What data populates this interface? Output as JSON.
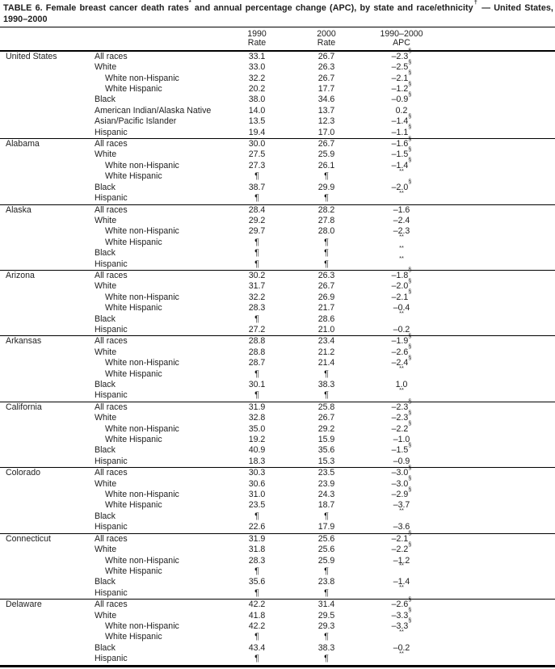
{
  "title": {
    "part1": "TABLE 6. Female breast cancer death rates",
    "sup1": "*",
    "part2": " and annual percentage change (APC), by state and race/ethnicity",
    "sup2": "†",
    "part3": " — United States, 1990–2000"
  },
  "header": {
    "col_1990_line1": "1990",
    "col_1990_line2": "Rate",
    "col_2000_line1": "2000",
    "col_2000_line2": "Rate",
    "col_apc_line1": "1990–2000",
    "col_apc_line2": "APC"
  },
  "sections": [
    {
      "state": "United States",
      "rows": [
        {
          "race": "All races",
          "indent": false,
          "r1990": "33.1",
          "r2000": "26.7",
          "apc": "–2.3",
          "mark": "§"
        },
        {
          "race": "White",
          "indent": false,
          "r1990": "33.0",
          "r2000": "26.3",
          "apc": "–2.5",
          "mark": "§"
        },
        {
          "race": "White non-Hispanic",
          "indent": true,
          "r1990": "32.2",
          "r2000": "26.7",
          "apc": "–2.1",
          "mark": "§"
        },
        {
          "race": "White Hispanic",
          "indent": true,
          "r1990": "20.2",
          "r2000": "17.7",
          "apc": "–1.2",
          "mark": "§"
        },
        {
          "race": "Black",
          "indent": false,
          "r1990": "38.0",
          "r2000": "34.6",
          "apc": "–0.9",
          "mark": "§"
        },
        {
          "race": "American Indian/Alaska Native",
          "indent": false,
          "r1990": "14.0",
          "r2000": "13.7",
          "apc": "0.2",
          "mark": ""
        },
        {
          "race": "Asian/Pacific Islander",
          "indent": false,
          "r1990": "13.5",
          "r2000": "12.3",
          "apc": "–1.4",
          "mark": "§"
        },
        {
          "race": "Hispanic",
          "indent": false,
          "r1990": "19.4",
          "r2000": "17.0",
          "apc": "–1.1",
          "mark": "§"
        }
      ]
    },
    {
      "state": "Alabama",
      "rows": [
        {
          "race": "All races",
          "indent": false,
          "r1990": "30.0",
          "r2000": "26.7",
          "apc": "–1.6",
          "mark": "§"
        },
        {
          "race": "White",
          "indent": false,
          "r1990": "27.5",
          "r2000": "25.9",
          "apc": "–1.5",
          "mark": "§"
        },
        {
          "race": "White non-Hispanic",
          "indent": true,
          "r1990": "27.3",
          "r2000": "26.1",
          "apc": "–1.4",
          "mark": "§"
        },
        {
          "race": "White Hispanic",
          "indent": true,
          "r1990": "¶",
          "r2000": "¶",
          "apc": "",
          "mark": "**"
        },
        {
          "race": "Black",
          "indent": false,
          "r1990": "38.7",
          "r2000": "29.9",
          "apc": "–2.0",
          "mark": "§"
        },
        {
          "race": "Hispanic",
          "indent": false,
          "r1990": "¶",
          "r2000": "¶",
          "apc": "",
          "mark": "**"
        }
      ]
    },
    {
      "state": "Alaska",
      "rows": [
        {
          "race": "All races",
          "indent": false,
          "r1990": "28.4",
          "r2000": "28.2",
          "apc": "–1.6",
          "mark": ""
        },
        {
          "race": "White",
          "indent": false,
          "r1990": "29.2",
          "r2000": "27.8",
          "apc": "–2.4",
          "mark": ""
        },
        {
          "race": "White non-Hispanic",
          "indent": true,
          "r1990": "29.7",
          "r2000": "28.0",
          "apc": "–2.3",
          "mark": ""
        },
        {
          "race": "White Hispanic",
          "indent": true,
          "r1990": "¶",
          "r2000": "¶",
          "apc": "",
          "mark": "**"
        },
        {
          "race": "Black",
          "indent": false,
          "r1990": "¶",
          "r2000": "¶",
          "apc": "",
          "mark": "**"
        },
        {
          "race": "Hispanic",
          "indent": false,
          "r1990": "¶",
          "r2000": "¶",
          "apc": "",
          "mark": "**"
        }
      ]
    },
    {
      "state": "Arizona",
      "rows": [
        {
          "race": "All races",
          "indent": false,
          "r1990": "30.2",
          "r2000": "26.3",
          "apc": "–1.8",
          "mark": "§"
        },
        {
          "race": "White",
          "indent": false,
          "r1990": "31.7",
          "r2000": "26.7",
          "apc": "–2.0",
          "mark": "§"
        },
        {
          "race": "White non-Hispanic",
          "indent": true,
          "r1990": "32.2",
          "r2000": "26.9",
          "apc": "–2.1",
          "mark": "§"
        },
        {
          "race": "White Hispanic",
          "indent": true,
          "r1990": "28.3",
          "r2000": "21.7",
          "apc": "–0.4",
          "mark": ""
        },
        {
          "race": "Black",
          "indent": false,
          "r1990": "¶",
          "r2000": "28.6",
          "apc": "",
          "mark": "**"
        },
        {
          "race": "Hispanic",
          "indent": false,
          "r1990": "27.2",
          "r2000": "21.0",
          "apc": "–0.2",
          "mark": ""
        }
      ]
    },
    {
      "state": "Arkansas",
      "rows": [
        {
          "race": "All races",
          "indent": false,
          "r1990": "28.8",
          "r2000": "23.4",
          "apc": "–1.9",
          "mark": "§"
        },
        {
          "race": "White",
          "indent": false,
          "r1990": "28.8",
          "r2000": "21.2",
          "apc": "–2.6",
          "mark": "§"
        },
        {
          "race": "White non-Hispanic",
          "indent": true,
          "r1990": "28.7",
          "r2000": "21.4",
          "apc": "–2.4",
          "mark": "§"
        },
        {
          "race": "White Hispanic",
          "indent": true,
          "r1990": "¶",
          "r2000": "¶",
          "apc": "",
          "mark": "**"
        },
        {
          "race": "Black",
          "indent": false,
          "r1990": "30.1",
          "r2000": "38.3",
          "apc": "1.0",
          "mark": ""
        },
        {
          "race": "Hispanic",
          "indent": false,
          "r1990": "¶",
          "r2000": "¶",
          "apc": "",
          "mark": "**"
        }
      ]
    },
    {
      "state": "California",
      "rows": [
        {
          "race": "All races",
          "indent": false,
          "r1990": "31.9",
          "r2000": "25.8",
          "apc": "–2.3",
          "mark": "§"
        },
        {
          "race": "White",
          "indent": false,
          "r1990": "32.8",
          "r2000": "26.7",
          "apc": "–2.3",
          "mark": "§"
        },
        {
          "race": "White non-Hispanic",
          "indent": true,
          "r1990": "35.0",
          "r2000": "29.2",
          "apc": "–2.2",
          "mark": "§"
        },
        {
          "race": "White Hispanic",
          "indent": true,
          "r1990": "19.2",
          "r2000": "15.9",
          "apc": "–1.0",
          "mark": ""
        },
        {
          "race": "Black",
          "indent": false,
          "r1990": "40.9",
          "r2000": "35.6",
          "apc": "–1.5",
          "mark": "§"
        },
        {
          "race": "Hispanic",
          "indent": false,
          "r1990": "18.3",
          "r2000": "15.3",
          "apc": "–0.9",
          "mark": ""
        }
      ]
    },
    {
      "state": "Colorado",
      "rows": [
        {
          "race": "All races",
          "indent": false,
          "r1990": "30.3",
          "r2000": "23.5",
          "apc": "–3.0",
          "mark": "§"
        },
        {
          "race": "White",
          "indent": false,
          "r1990": "30.6",
          "r2000": "23.9",
          "apc": "–3.0",
          "mark": "§"
        },
        {
          "race": "White non-Hispanic",
          "indent": true,
          "r1990": "31.0",
          "r2000": "24.3",
          "apc": "–2.9",
          "mark": "§"
        },
        {
          "race": "White Hispanic",
          "indent": true,
          "r1990": "23.5",
          "r2000": "18.7",
          "apc": "–3.7",
          "mark": ""
        },
        {
          "race": "Black",
          "indent": false,
          "r1990": "¶",
          "r2000": "¶",
          "apc": "",
          "mark": "**"
        },
        {
          "race": "Hispanic",
          "indent": false,
          "r1990": "22.6",
          "r2000": "17.9",
          "apc": "–3.6",
          "mark": ""
        }
      ]
    },
    {
      "state": "Connecticut",
      "rows": [
        {
          "race": "All races",
          "indent": false,
          "r1990": "31.9",
          "r2000": "25.6",
          "apc": "–2.1",
          "mark": "§"
        },
        {
          "race": "White",
          "indent": false,
          "r1990": "31.8",
          "r2000": "25.6",
          "apc": "–2.2",
          "mark": "§"
        },
        {
          "race": "White non-Hispanic",
          "indent": true,
          "r1990": "28.3",
          "r2000": "25.9",
          "apc": "–1.2",
          "mark": ""
        },
        {
          "race": "White Hispanic",
          "indent": true,
          "r1990": "¶",
          "r2000": "¶",
          "apc": "",
          "mark": "**"
        },
        {
          "race": "Black",
          "indent": false,
          "r1990": "35.6",
          "r2000": "23.8",
          "apc": "–1.4",
          "mark": ""
        },
        {
          "race": "Hispanic",
          "indent": false,
          "r1990": "¶",
          "r2000": "¶",
          "apc": "",
          "mark": "**"
        }
      ]
    },
    {
      "state": "Delaware",
      "rows": [
        {
          "race": "All races",
          "indent": false,
          "r1990": "42.2",
          "r2000": "31.4",
          "apc": "–2.6",
          "mark": "§"
        },
        {
          "race": "White",
          "indent": false,
          "r1990": "41.8",
          "r2000": "29.5",
          "apc": "–3.3",
          "mark": "§"
        },
        {
          "race": "White non-Hispanic",
          "indent": true,
          "r1990": "42.2",
          "r2000": "29.3",
          "apc": "–3.3",
          "mark": "§"
        },
        {
          "race": "White Hispanic",
          "indent": true,
          "r1990": "¶",
          "r2000": "¶",
          "apc": "",
          "mark": "**"
        },
        {
          "race": "Black",
          "indent": false,
          "r1990": "43.4",
          "r2000": "38.3",
          "apc": "–0.2",
          "mark": ""
        },
        {
          "race": "Hispanic",
          "indent": false,
          "r1990": "¶",
          "r2000": "¶",
          "apc": "",
          "mark": "**"
        }
      ]
    }
  ]
}
